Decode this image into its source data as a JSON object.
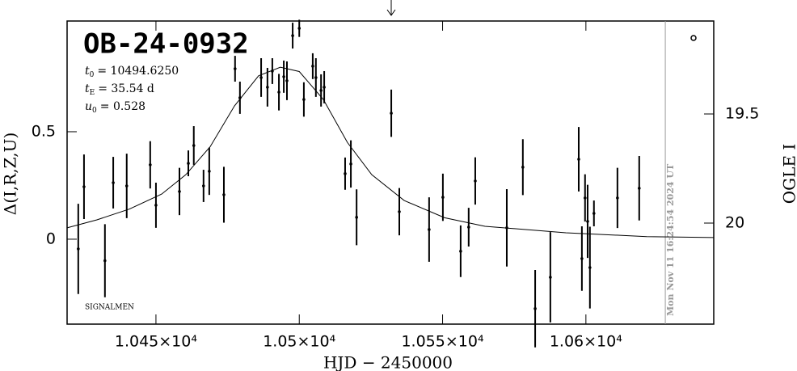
{
  "chart_data": {
    "type": "scatter",
    "title": "OB-24-0932",
    "parameters": [
      {
        "symbol": "t",
        "subscript": "0",
        "text": "= 10494.6250"
      },
      {
        "symbol": "t",
        "subscript": "E",
        "text": "= 35.54 d"
      },
      {
        "symbol": "u",
        "subscript": "0",
        "text": "= 0.528"
      }
    ],
    "note": "SIGNALMEN",
    "timestamp": "Mon Nov 11 16:24:54 2024 UT",
    "timestamp_x": 10627.7,
    "x_label": "HJD − 2450000",
    "y_label": "Δ(I,R,Z,U)",
    "y2_label": "OGLE I",
    "xlim": [
      10419,
      10644.6
    ],
    "ylim": [
      -0.395,
      1.015
    ],
    "y2lim": [
      20.463,
      19.074
    ],
    "xticks": [
      {
        "value": 10450,
        "label": "1.045×10⁴"
      },
      {
        "value": 10500,
        "label": "1.05×10⁴"
      },
      {
        "value": 10550,
        "label": "1.055×10⁴"
      },
      {
        "value": 10600,
        "label": "1.06×10⁴"
      }
    ],
    "yticks": [
      0,
      0.5
    ],
    "y2ticks": [
      19.5,
      20
    ],
    "color": "#000000",
    "x": [
      10422.9,
      10424.9,
      10432.2,
      10435.1,
      10439.8,
      10448.0,
      10450.0,
      10458.2,
      10461.3,
      10463.2,
      10466.6,
      10468.6,
      10473.7,
      10477.6,
      10479.3,
      10486.7,
      10488.9,
      10490.6,
      10492.9,
      10494.6,
      10495.7,
      10497.7,
      10500.0,
      10501.6,
      10504.7,
      10505.8,
      10507.6,
      10508.7,
      10516.0,
      10518.0,
      10520.0,
      10532.1,
      10534.9,
      10545.3,
      10550.1,
      10556.3,
      10559.1,
      10561.4,
      10572.4,
      10578.0,
      10582.3,
      10587.6,
      10597.5,
      10598.6,
      10599.7,
      10600.6,
      10601.4,
      10602.8,
      10611.0,
      10618.6
    ],
    "values": [
      -0.045,
      0.244,
      -0.1,
      0.263,
      0.248,
      0.346,
      0.158,
      0.222,
      0.353,
      0.436,
      0.248,
      0.316,
      0.207,
      0.793,
      0.658,
      0.752,
      0.707,
      0.782,
      0.684,
      0.756,
      0.737,
      0.947,
      0.981,
      0.65,
      0.805,
      0.752,
      0.692,
      0.707,
      0.305,
      0.35,
      0.102,
      0.586,
      0.128,
      0.045,
      0.195,
      -0.056,
      0.056,
      0.271,
      0.053,
      0.335,
      -0.323,
      -0.177,
      0.372,
      -0.09,
      0.192,
      0.083,
      -0.132,
      0.12,
      0.192,
      0.237
    ],
    "errors": [
      0.21,
      0.15,
      0.17,
      0.12,
      0.15,
      0.11,
      0.105,
      0.11,
      0.06,
      0.09,
      0.075,
      0.11,
      0.13,
      0.06,
      0.075,
      0.09,
      0.09,
      0.06,
      0.085,
      0.075,
      0.09,
      0.06,
      0.04,
      0.08,
      0.06,
      0.09,
      0.075,
      0.075,
      0.075,
      0.11,
      0.13,
      0.11,
      0.11,
      0.15,
      0.11,
      0.12,
      0.09,
      0.11,
      0.18,
      0.13,
      0.18,
      0.21,
      0.15,
      0.15,
      0.11,
      0.17,
      0.19,
      0.06,
      0.14,
      0.15
    ],
    "model": {
      "x": [
        10419,
        10429.4,
        10440.7,
        10452.0,
        10460.4,
        10468.9,
        10477.4,
        10485.8,
        10493.4,
        10500,
        10508.4,
        10516.8,
        10525.3,
        10536.6,
        10550.7,
        10564.8,
        10593,
        10621.2,
        10644.6
      ],
      "values": [
        0.053,
        0.09,
        0.14,
        0.21,
        0.3,
        0.43,
        0.62,
        0.76,
        0.8,
        0.78,
        0.65,
        0.45,
        0.3,
        0.18,
        0.1,
        0.06,
        0.03,
        0.012,
        0.008
      ]
    }
  }
}
